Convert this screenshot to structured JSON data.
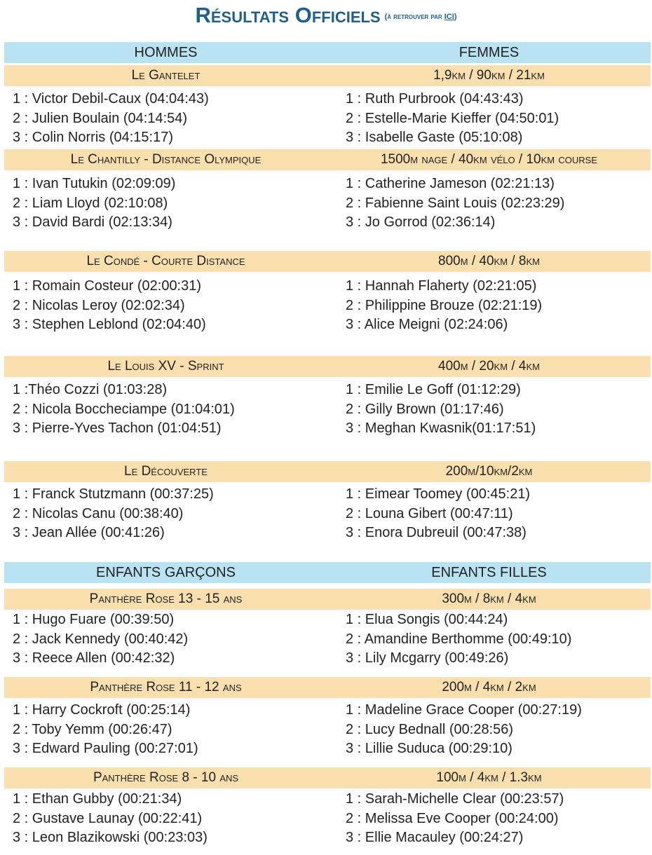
{
  "title": {
    "main": "Résultats Officiels",
    "sub_prefix": "(à retrouver par ",
    "link": "ICI",
    "sub_suffix": ")"
  },
  "sections": [
    {
      "group": [
        "HOMMES",
        "FEMMES"
      ],
      "races": [
        {
          "name": "Le Gantelet",
          "distance": "1,9km / 90km / 21km",
          "men": [
            "1 : Victor Debil-Caux (04:04:43)",
            "2 : Julien Boulain (04:14:54)",
            "3 : Colin Norris (04:15:17)"
          ],
          "women": [
            "1 : Ruth Purbrook (04:43:43)",
            "2 : Estelle-Marie Kieffer (04:50:01)",
            "3 : Isabelle Gaste (05:10:08)"
          ]
        },
        {
          "name": "Le Chantilly - Distance Olympique",
          "distance": "1500m nage / 40km vélo / 10km course",
          "men": [
            "1 : Ivan Tutukin (02:09:09)",
            "2 : Liam Lloyd (02:10:08)",
            "3 : David Bardi (02:13:34)"
          ],
          "women": [
            "1 : Catherine Jameson (02:21:13)",
            "2 : Fabienne Saint Louis (02:23:29)",
            "3 : Jo Gorrod (02:36:14)"
          ]
        },
        {
          "name": "Le Condé - Courte Distance",
          "distance": "800m / 40km / 8km",
          "men": [
            "1 : Romain Costeur (02:00:31)",
            "2 : Nicolas Leroy (02:02:34)",
            "3 : Stephen Leblond (02:04:40)"
          ],
          "women": [
            "1 : Hannah Flaherty (02:21:05)",
            "2 : Philippine Brouze (02:21:19)",
            "3 : Alice Meigni (02:24:06)"
          ]
        },
        {
          "name": "Le Louis XV - Sprint",
          "distance": "400m / 20km / 4km",
          "men": [
            "1 :Théo Cozzi (01:03:28)",
            "2 : Nicola Boccheciampe (01:04:01)",
            "3 : Pierre-Yves Tachon (01:04:51)"
          ],
          "women": [
            "1 : Emilie Le Goff (01:12:29)",
            "2 : Gilly Brown (01:17:46)",
            "3 : Meghan Kwasnik(01:17:51)"
          ]
        },
        {
          "name": "Le Découverte",
          "distance": "200m/10km/2km",
          "men": [
            "1 : Franck Stutzmann (00:37:25)",
            "2 : Nicolas Canu (00:38:40)",
            "3 : Jean Allée (00:41:26)"
          ],
          "women": [
            "1 : Eimear Toomey (00:45:21)",
            "2 : Louna Gibert (00:47:11)",
            "3 : Enora Dubreuil (00:47:38)"
          ]
        }
      ]
    },
    {
      "group": [
        "ENFANTS GARÇONS",
        "ENFANTS FILLES"
      ],
      "races": [
        {
          "name": "Panthère Rose 13 - 15 ans",
          "distance": "300m / 8km / 4km",
          "men": [
            "1 : Hugo Fuare (00:39:50)",
            "2 : Jack Kennedy (00:40:42)",
            "3 : Reece Allen (00:42:32)"
          ],
          "women": [
            "1 : Elua Songis (00:44:24)",
            "2 : Amandine Berthomme (00:49:10)",
            "3 : Lily Mcgarry (00:49:26)"
          ]
        },
        {
          "name": "Panthère Rose 11 - 12 ans",
          "distance": "200m / 4km / 2km",
          "men": [
            "1 : Harry Cockroft (00:25:14)",
            "2 : Toby Yemm (00:26:47)",
            "3 : Edward Pauling (00:27:01)"
          ],
          "women": [
            "1 : Madeline Grace Cooper (00:27:19)",
            "2 : Lucy Bednall (00:28:56)",
            "3 : Lillie Suduca (00:29:10)"
          ]
        },
        {
          "name": "Panthère Rose 8 - 10 ans",
          "distance": "100m / 4km / 1.3km",
          "men": [
            "1 : Ethan Gubby (00:21:34)",
            "2 : Gustave Launay (00:22:41)",
            "3 : Leon Blazikowski (00:23:03)"
          ],
          "women": [
            "1 : Sarah-Michelle Clear (00:23:57)",
            "2 : Melissa Eve Cooper (00:24:00)",
            "3 : Ellie Macauley (00:24:27)"
          ]
        }
      ]
    }
  ]
}
